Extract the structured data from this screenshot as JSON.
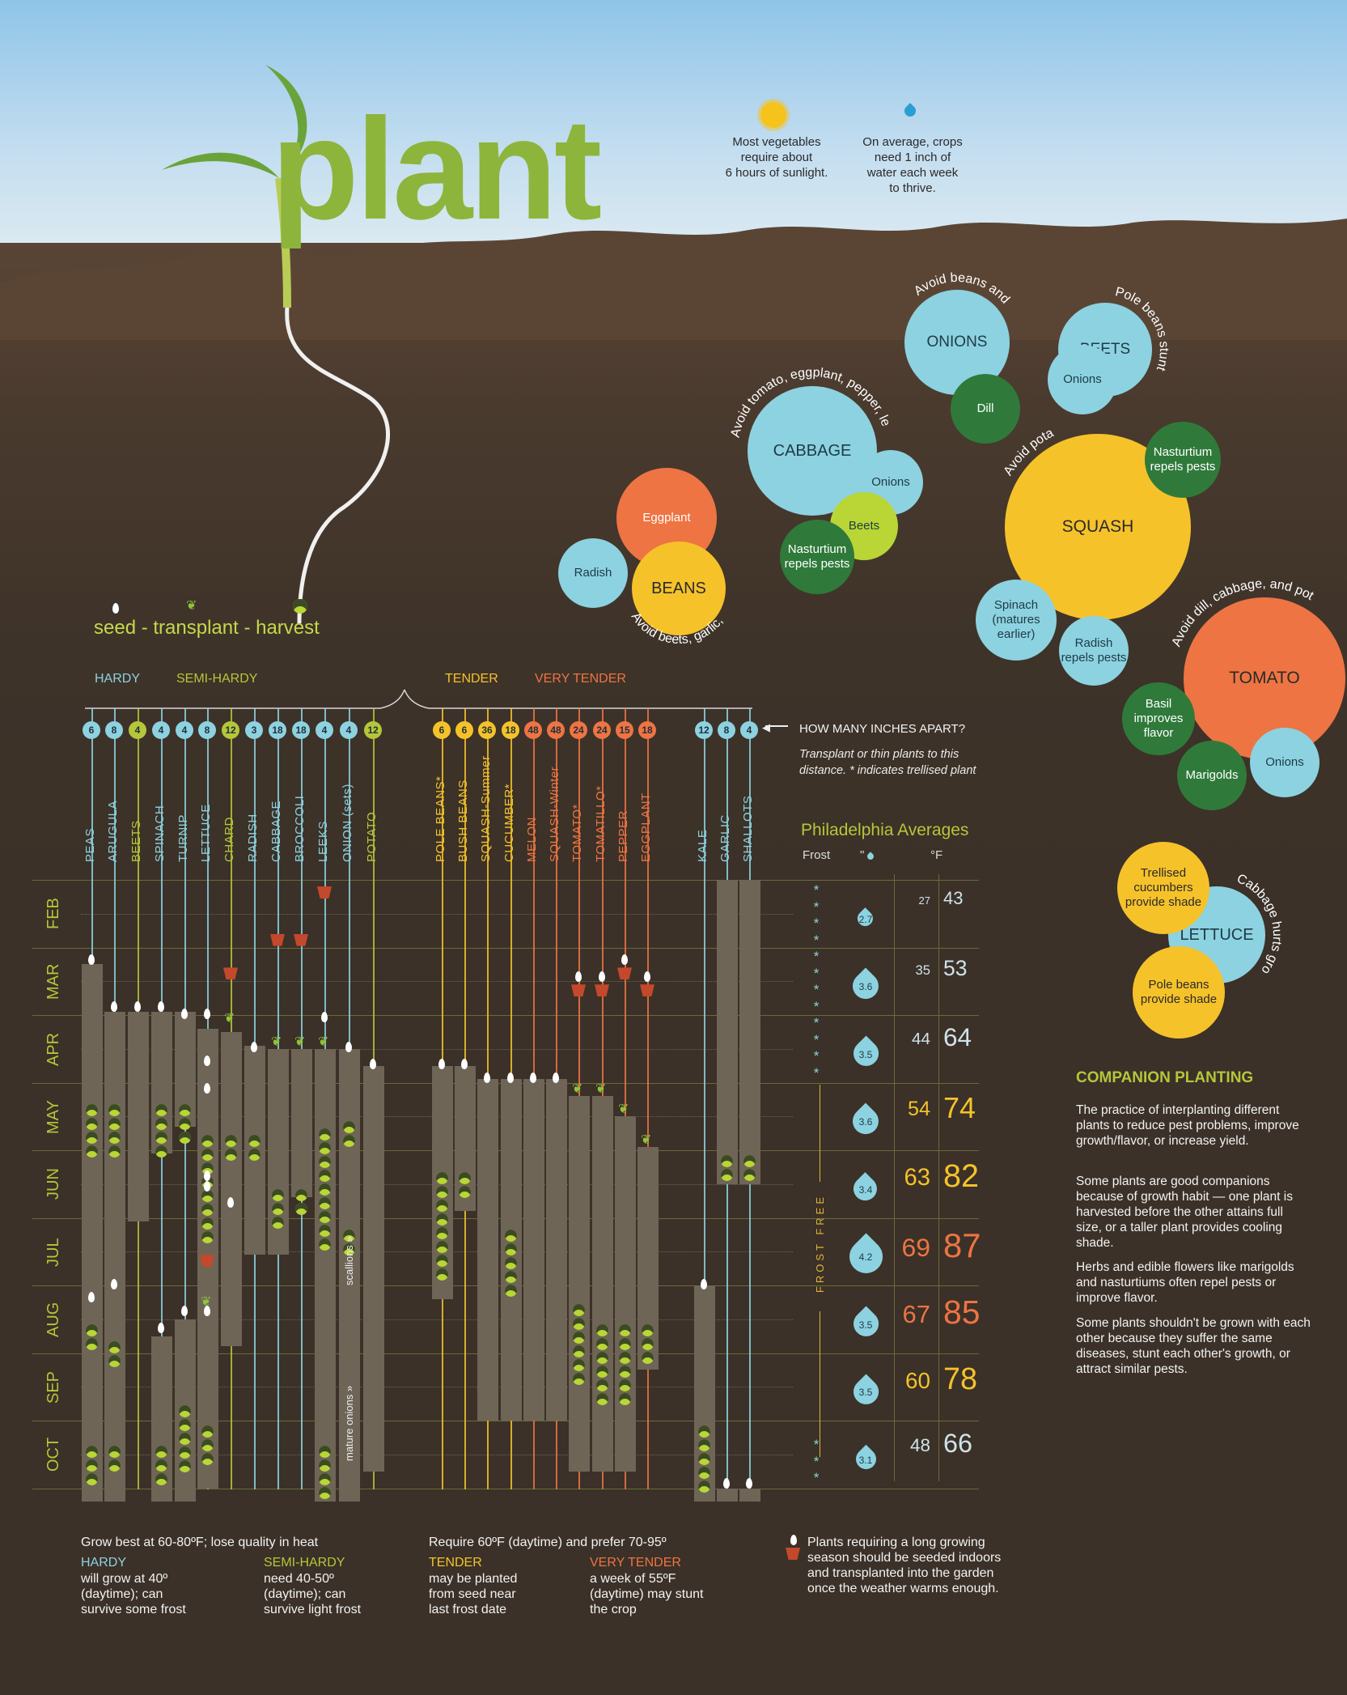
{
  "header": {
    "title": "plant",
    "sun_note": [
      "Most vegetables",
      "require about",
      "6 hours of sunlight."
    ],
    "water_note": [
      "On average, crops",
      "need 1 inch of",
      "water each week",
      "to thrive."
    ]
  },
  "legend": {
    "text": "seed - transplant - harvest"
  },
  "groups": {
    "hardy": "HARDY",
    "semi_hardy": "SEMI-HARDY",
    "tender": "TENDER",
    "very_tender": "VERY TENDER"
  },
  "spacing": {
    "question": "HOW MANY INCHES APART?",
    "note": [
      "Transplant or thin plants to this",
      "distance. * indicates trellised plant"
    ]
  },
  "crops": [
    {
      "name": "PEAS",
      "inches": "6",
      "group": "hardy"
    },
    {
      "name": "ARUGULA",
      "inches": "8",
      "group": "hardy"
    },
    {
      "name": "BEETS",
      "inches": "4",
      "group": "semi"
    },
    {
      "name": "SPINACH",
      "inches": "4",
      "group": "hardy"
    },
    {
      "name": "TURNIP",
      "inches": "4",
      "group": "hardy"
    },
    {
      "name": "LETTUCE",
      "inches": "8",
      "group": "hardy"
    },
    {
      "name": "CHARD",
      "inches": "12",
      "group": "semi"
    },
    {
      "name": "RADISH",
      "inches": "3",
      "group": "hardy"
    },
    {
      "name": "CABBAGE",
      "inches": "18",
      "group": "hardy"
    },
    {
      "name": "BROCCOLI",
      "inches": "18",
      "group": "hardy"
    },
    {
      "name": "LEEKS",
      "inches": "4",
      "group": "hardy"
    },
    {
      "name": "ONION (sets)",
      "inches": "4",
      "group": "hardy"
    },
    {
      "name": "POTATO",
      "inches": "12",
      "group": "semi"
    },
    {
      "name": "POLE BEANS*",
      "inches": "6",
      "group": "tender"
    },
    {
      "name": "BUSH BEANS",
      "inches": "6",
      "group": "tender"
    },
    {
      "name": "SQUASH-Summer",
      "inches": "36",
      "group": "tender"
    },
    {
      "name": "CUCUMBER*",
      "inches": "18",
      "group": "tender"
    },
    {
      "name": "MELON",
      "inches": "48",
      "group": "vtender"
    },
    {
      "name": "SQUASH-Winter",
      "inches": "48",
      "group": "vtender"
    },
    {
      "name": "TOMATO*",
      "inches": "24",
      "group": "vtender"
    },
    {
      "name": "TOMATILLO*",
      "inches": "24",
      "group": "vtender"
    },
    {
      "name": "PEPPER",
      "inches": "15",
      "group": "vtender"
    },
    {
      "name": "EGGPLANT",
      "inches": "18",
      "group": "vtender"
    },
    {
      "name": "KALE",
      "inches": "12",
      "group": "hardy"
    },
    {
      "name": "GARLIC",
      "inches": "8",
      "group": "hardy"
    },
    {
      "name": "SHALLOTS",
      "inches": "4",
      "group": "hardy"
    }
  ],
  "months": [
    "FEB",
    "MAR",
    "APR",
    "MAY",
    "JUN",
    "JUL",
    "AUG",
    "SEP",
    "OCT"
  ],
  "chart_notes": {
    "scallions": "scallions »",
    "mature_onions": "mature onions »"
  },
  "averages": {
    "title": "Philadelphia Averages",
    "frost_label": "Frost",
    "inches_label": "\"",
    "temp_label": "°F",
    "frost_free": "FROST FREE",
    "rows": [
      {
        "month": "FEB",
        "rain": "2.7",
        "low": "27",
        "high": "43"
      },
      {
        "month": "MAR",
        "rain": "3.6",
        "low": "35",
        "high": "53"
      },
      {
        "month": "APR",
        "rain": "3.5",
        "low": "44",
        "high": "64"
      },
      {
        "month": "MAY",
        "rain": "3.6",
        "low": "54",
        "high": "74"
      },
      {
        "month": "JUN",
        "rain": "3.4",
        "low": "63",
        "high": "82"
      },
      {
        "month": "JUL",
        "rain": "4.2",
        "low": "69",
        "high": "87"
      },
      {
        "month": "AUG",
        "rain": "3.5",
        "low": "67",
        "high": "85"
      },
      {
        "month": "SEP",
        "rain": "3.5",
        "low": "60",
        "high": "78"
      },
      {
        "month": "OCT",
        "rain": "3.1",
        "low": "48",
        "high": "66"
      }
    ]
  },
  "companions": {
    "onions": {
      "main": "ONIONS",
      "partner": "Dill",
      "arc": "Avoid beans and peas"
    },
    "beets": {
      "main": "BEETS",
      "partner": "Onions",
      "arc": "Pole beans stunt growth"
    },
    "cabbage": {
      "main": "CABBAGE",
      "partners": [
        "Onions",
        "Beets",
        "Nasturtium repels pests"
      ],
      "arc": "Avoid tomato, eggplant, pepper, lettuce, pole beans"
    },
    "beans": {
      "main": "BEANS",
      "partners": [
        "Eggplant",
        "Radish"
      ],
      "arc": "Avoid beets, garlic, onions"
    },
    "squash": {
      "main": "SQUASH",
      "partners": [
        "Nasturtium repels pests",
        "Spinach (matures earlier)",
        "Radish repels pests"
      ],
      "arc": "Avoid potatoes"
    },
    "tomato": {
      "main": "TOMATO",
      "partners": [
        "Basil improves flavor",
        "Marigolds",
        "Onions"
      ],
      "arc": "Avoid dill, cabbage, and potatoes"
    },
    "lettuce": {
      "main": "LETTUCE",
      "partners": [
        "Trellised cucumbers provide shade",
        "Pole beans provide shade"
      ],
      "arc": "Cabbage hurts growth/flavor"
    }
  },
  "companion_planting": {
    "title": "COMPANION PLANTING",
    "paragraphs": [
      "The practice of interplanting different plants to reduce pest problems, improve growth/flavor, or increase yield.",
      "Some plants are good companions because of growth habit — one plant is harvested before the other attains full size, or a taller plant provides cooling shade.",
      "Herbs and edible flowers like marigolds and nasturtiums often repel pests or improve flavor.",
      "Some plants shouldn't be grown with each other because they suffer the same diseases, stunt each other's growth, or attract similar pests."
    ]
  },
  "footer": {
    "cool_intro": "Grow best at 60-80ºF; lose quality in heat",
    "warm_intro": "Require 60ºF (daytime) and prefer 70-95º",
    "hardy_title": "HARDY",
    "hardy_text": [
      "will grow at 40º",
      "(daytime); can",
      "survive some frost"
    ],
    "semi_title": "SEMI-HARDY",
    "semi_text": [
      "need 40-50º",
      "(daytime); can",
      "survive light frost"
    ],
    "tender_title": "TENDER",
    "tender_text": [
      "may be planted",
      "from seed near",
      "last frost date"
    ],
    "vtender_title": "VERY TENDER",
    "vtender_text": [
      "a week of 55ºF",
      "(daytime) may stunt",
      "the crop"
    ],
    "indoor_note": [
      "Plants requiring a long growing",
      "season should be seeded indoors",
      "and transplanted into the garden",
      "once the weather warms enough."
    ]
  },
  "colors": {
    "hardy": "#8dd2e0",
    "semi": "#b5c63a",
    "tender": "#f5c22a",
    "vtender": "#ee7443",
    "title_green": "#8db53c",
    "bar": "#6e6557"
  },
  "icons": [
    "sun-icon",
    "water-drop-icon",
    "seed-icon",
    "sprout-icon",
    "harvest-icon",
    "pot-icon",
    "seedling-plant-icon"
  ]
}
